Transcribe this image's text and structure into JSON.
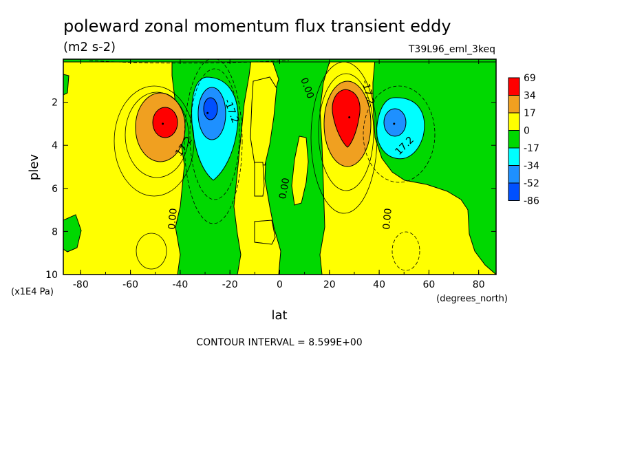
{
  "chart_data": {
    "type": "heatmap",
    "title": "poleward zonal momentum flux transient eddy",
    "units": "(m2 s-2)",
    "dataset": "T39L96_eml_3keq",
    "xlabel": "lat",
    "x_units": "(degrees_north)",
    "ylabel": "plev",
    "y_units": "(x1E4 Pa)",
    "xlim": [
      -87,
      87
    ],
    "ylim": [
      10,
      0
    ],
    "x_ticks": [
      "-80",
      "-60",
      "-40",
      "-20",
      "0",
      "20",
      "40",
      "60",
      "80"
    ],
    "y_ticks": [
      "2",
      "4",
      "6",
      "8",
      "10"
    ],
    "footer": "CONTOUR INTERVAL = 8.599E+00",
    "contour_labels": [
      "17.2",
      "-17.2",
      "0.00",
      "0.00",
      "-17.2",
      "17.2",
      "0.00",
      "0.00",
      "-17.2",
      "0.00"
    ],
    "colorbar": {
      "labels": [
        "69",
        "34",
        "17",
        "0",
        "-17",
        "-34",
        "-52",
        "-86"
      ],
      "colors": [
        "#ff0000",
        "#f0a020",
        "#ffff00",
        "#00d800",
        "#00ffff",
        "#1e90ff",
        "#0050ff"
      ]
    },
    "features": [
      {
        "kind": "max",
        "lat": -47,
        "plev": 3.0,
        "value": 60
      },
      {
        "kind": "min",
        "lat": -29,
        "plev": 2.5,
        "value": -55
      },
      {
        "kind": "max",
        "lat": 28,
        "plev": 2.7,
        "value": 69
      },
      {
        "kind": "min",
        "lat": 46,
        "plev": 3.0,
        "value": -40
      }
    ]
  }
}
